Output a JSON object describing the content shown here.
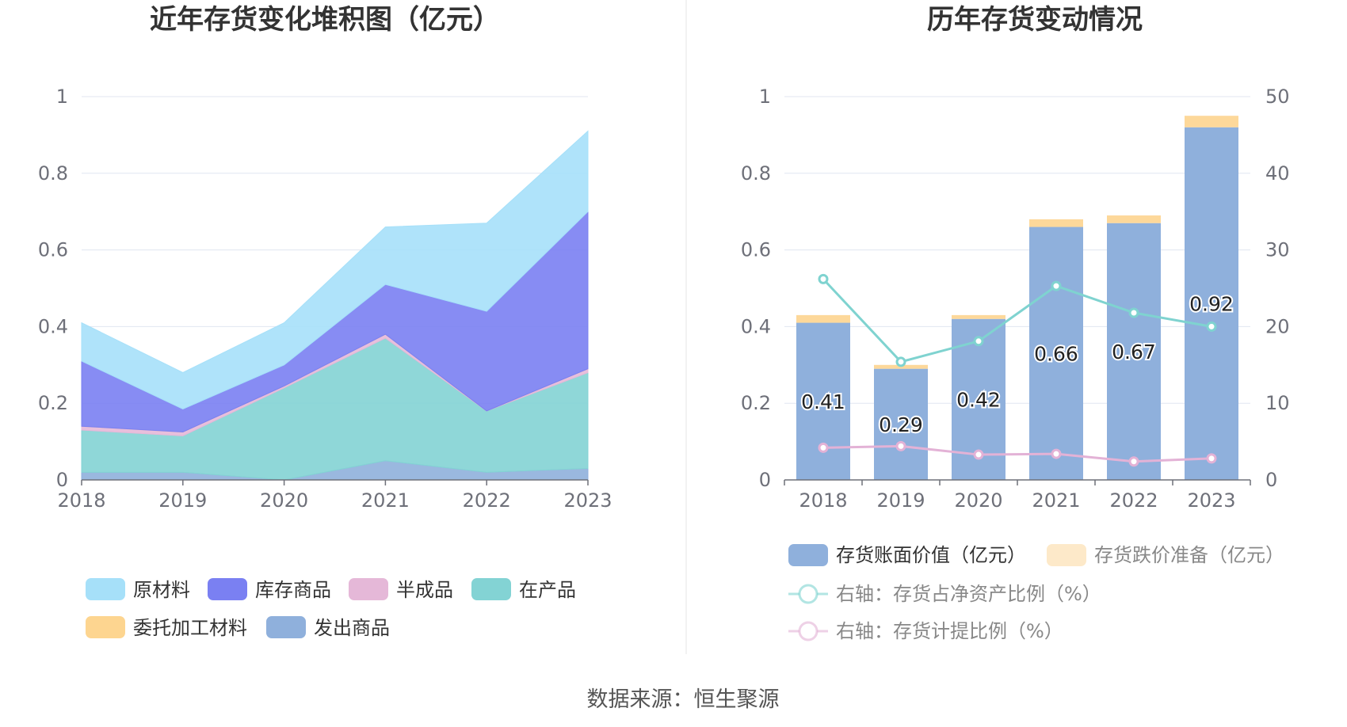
{
  "source": "数据来源：恒生聚源",
  "chart_data": [
    {
      "type": "area",
      "stacked": true,
      "title": "近年存货变化堆积图（亿元）",
      "categories": [
        "2018",
        "2019",
        "2020",
        "2021",
        "2022",
        "2023"
      ],
      "y_ticks": [
        "0",
        "0.2",
        "0.4",
        "0.6",
        "0.8",
        "1"
      ],
      "ylim": [
        0,
        1
      ],
      "grid": true,
      "legend_position": "bottom",
      "series": [
        {
          "name": "发出商品",
          "color": "#8fb0dc",
          "values": [
            0.02,
            0.02,
            0.0,
            0.05,
            0.02,
            0.03
          ]
        },
        {
          "name": "在产品",
          "color": "#83d3d4",
          "values": [
            0.11,
            0.095,
            0.24,
            0.32,
            0.16,
            0.25
          ]
        },
        {
          "name": "半成品",
          "color": "#e5b8d8",
          "values": [
            0.01,
            0.01,
            0.005,
            0.01,
            0.0,
            0.01
          ]
        },
        {
          "name": "委托加工材料",
          "color": "#fdd590",
          "values": [
            0.0,
            0.0,
            0.0,
            0.0,
            0.0,
            0.0
          ]
        },
        {
          "name": "库存商品",
          "color": "#7a80f2",
          "values": [
            0.17,
            0.06,
            0.055,
            0.13,
            0.26,
            0.41
          ]
        },
        {
          "name": "原材料",
          "color": "#a6e0f9",
          "values": [
            0.1,
            0.095,
            0.11,
            0.15,
            0.23,
            0.21
          ]
        }
      ],
      "legend_order": [
        "原材料",
        "库存商品",
        "半成品",
        "在产品",
        "委托加工材料",
        "发出商品"
      ]
    },
    {
      "type": "bar",
      "title": "历年存货变动情况",
      "categories": [
        "2018",
        "2019",
        "2020",
        "2021",
        "2022",
        "2023"
      ],
      "y_ticks_left": [
        "0",
        "0.2",
        "0.4",
        "0.6",
        "0.8",
        "1"
      ],
      "y_ticks_right": [
        "0",
        "10",
        "20",
        "30",
        "40",
        "50"
      ],
      "ylim_left": [
        0,
        1
      ],
      "ylim_right": [
        0,
        50
      ],
      "grid": true,
      "legend_position": "bottom",
      "bar_series": [
        {
          "name": "存货账面价值（亿元）",
          "color": "#8fb0dc",
          "values": [
            0.41,
            0.29,
            0.42,
            0.66,
            0.67,
            0.92
          ],
          "labels": [
            "0.41",
            "0.29",
            "0.42",
            "0.66",
            "0.67",
            "0.92"
          ]
        },
        {
          "name": "存货跌价准备（亿元）",
          "color": "#fdd89a",
          "values": [
            0.02,
            0.01,
            0.01,
            0.02,
            0.02,
            0.03
          ]
        }
      ],
      "line_series": [
        {
          "name": "右轴：存货占净资产比例（%）",
          "color": "#7fd3d0",
          "axis": "right",
          "values": [
            26.2,
            15.4,
            18.1,
            25.3,
            21.8,
            20.0
          ]
        },
        {
          "name": "右轴：存货计提比例（%）",
          "color": "#e3b2d6",
          "axis": "right",
          "values": [
            4.2,
            4.4,
            3.3,
            3.4,
            2.4,
            2.8
          ]
        }
      ]
    }
  ]
}
